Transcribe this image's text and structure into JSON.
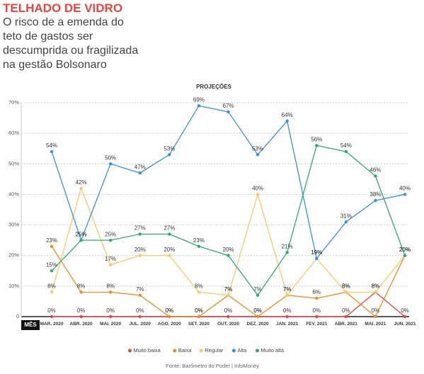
{
  "header": {
    "title": "TELHADO DE VIDRO",
    "subtitle": "O risco de a emenda do teto de gastos ser descumprida ou fragilizada na gestão Bolsonaro"
  },
  "chart_data": {
    "type": "line",
    "title": "PROJEÇÕES",
    "x_label": "MÊS",
    "source": "Fonte: Barômetro do Poder | InfoMoney",
    "categories": [
      "MAR. 2020",
      "ABR. 2020",
      "MAI. 2020",
      "JUL. 2020",
      "AGO. 2020",
      "SET. 2020",
      "OUT. 2020",
      "DEZ. 2020",
      "JAN. 2021",
      "FEV. 2021",
      "ABR. 2021",
      "MAI. 2021",
      "JUN. 2021"
    ],
    "ylim": [
      0,
      70
    ],
    "yticks": [
      0,
      {
        "value": 10,
        "label": "10%"
      },
      {
        "value": 20,
        "label": "20%"
      },
      {
        "value": 30,
        "label": "30%"
      },
      {
        "value": 40,
        "label": "40%"
      },
      {
        "value": 50,
        "label": "50%"
      },
      {
        "value": 60,
        "label": "60%"
      },
      {
        "value": 70,
        "label": "70%"
      }
    ],
    "grid": true,
    "series": [
      {
        "name": "Muito baixa",
        "color": "#e5453d",
        "values": [
          0,
          0,
          0,
          0,
          0,
          0,
          0,
          0,
          0,
          0,
          0,
          8,
          0
        ],
        "value_labels": [
          "0%",
          "0%",
          "0%",
          "0%",
          "0%",
          "0%",
          "0%",
          "0%",
          "0%",
          "0%",
          "0%",
          "8%",
          "0%"
        ]
      },
      {
        "name": "Baixa",
        "color": "#f08a24",
        "values": [
          23,
          8,
          8,
          7,
          0,
          0,
          7,
          0,
          7,
          6,
          8,
          0,
          20
        ],
        "value_labels": [
          "23%",
          "8%",
          "8%",
          "7%",
          "0%",
          "0%",
          "7%",
          "0%",
          "7%",
          "6%",
          "8%",
          "0%",
          "20%"
        ]
      },
      {
        "name": "Regular",
        "color": "#f7c96b",
        "values": [
          8,
          42,
          17,
          20,
          20,
          8,
          7,
          40,
          7,
          19,
          8,
          8,
          20
        ],
        "value_labels": [
          "8%",
          "42%",
          "17%",
          "20%",
          "20%",
          "8%",
          "7%",
          "40%",
          "7%",
          "19%",
          "8%",
          "8%",
          "20%"
        ]
      },
      {
        "name": "Alta",
        "color": "#3a8fdc",
        "values": [
          54,
          25,
          50,
          47,
          53,
          69,
          67,
          53,
          64,
          19,
          31,
          38,
          40
        ],
        "value_labels": [
          "54%",
          "25%",
          "50%",
          "47%",
          "53%",
          "69%",
          "67%",
          "53%",
          "64%",
          "19%",
          "31%",
          "38%",
          "40%"
        ]
      },
      {
        "name": "Muito alta",
        "color": "#2eaa6e",
        "values": [
          15,
          25,
          25,
          27,
          27,
          23,
          20,
          7,
          21,
          56,
          54,
          46,
          20
        ],
        "value_labels": [
          "15%",
          "25%",
          "25%",
          "27%",
          "27%",
          "23%",
          "20%",
          "7%",
          "21%",
          "56%",
          "54%",
          "46%",
          "20%"
        ]
      }
    ]
  }
}
